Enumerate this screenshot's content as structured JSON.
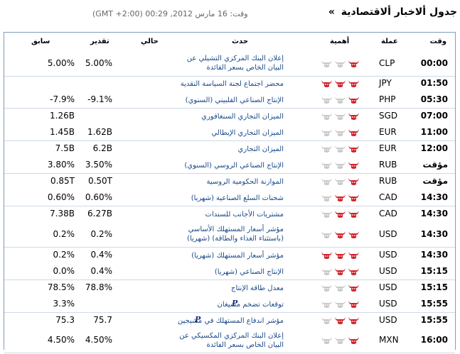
{
  "header": {
    "title": "جدول ألاخبار ألاقتصادية",
    "raquo": "»",
    "subtitle": "وقت: 16 مارس 2012, 00:29 (GMT +2:00)"
  },
  "columns": {
    "time": "وقت",
    "currency": "عملة",
    "importance": "أهمية",
    "event": "حدث",
    "actual": "حالي",
    "forecast": "تقدير",
    "previous": "سابق"
  },
  "colors": {
    "bull_active": "#d0202a",
    "bull_inactive": "#c8c8c8",
    "border": "#7f9db9",
    "event_link": "#1a4a8a"
  },
  "rows": [
    {
      "time": "00:00",
      "currency": "CLP",
      "importance": 1,
      "event": "إعلان البنك المركزي التشيلي عن البيان الخاص بسعر الفائدة",
      "actual": "",
      "forecast": "5.00%",
      "previous": "5.00%",
      "pin": false
    },
    {
      "time": "01:50",
      "currency": "JPY",
      "importance": 3,
      "event": "محضر اجتماع لجنة السياسة النقدية",
      "actual": "",
      "forecast": "",
      "previous": "",
      "pin": false
    },
    {
      "time": "05:30",
      "currency": "PHP",
      "importance": 1,
      "event": "الإنتاج الصناعي الفلبيني (السنوي)",
      "actual": "",
      "forecast": "-9.1%",
      "previous": "-7.9%",
      "pin": false
    },
    {
      "time": "07:00",
      "currency": "SGD",
      "importance": 1,
      "event": "الميزان التجاري السنغافوري",
      "actual": "",
      "forecast": "",
      "previous": "1.26B",
      "pin": false
    },
    {
      "time": "11:00",
      "currency": "EUR",
      "importance": 1,
      "event": "الميزان التجاري الإيطالي",
      "actual": "",
      "forecast": "1.62B",
      "previous": "1.45B",
      "pin": false
    },
    {
      "time": "12:00",
      "currency": "EUR",
      "importance": 1,
      "event": "الميزان التجاري",
      "actual": "",
      "forecast": "6.2B",
      "previous": "7.5B",
      "pin": false
    },
    {
      "time": "مؤقت",
      "currency": "RUB",
      "importance": 1,
      "event": "الإنتاج الصناعي الروسي (السنوي)",
      "actual": "",
      "forecast": "3.50%",
      "previous": "3.80%",
      "pin": false
    },
    {
      "time": "مؤقت",
      "currency": "RUB",
      "importance": 1,
      "event": "الموازنة الحكومية الروسية",
      "actual": "",
      "forecast": "0.50T",
      "previous": "0.85T",
      "pin": false
    },
    {
      "time": "14:30",
      "currency": "CAD",
      "importance": 2,
      "event": "شحنات السلع الصناعية (شهريا)",
      "actual": "",
      "forecast": "0.60%",
      "previous": "0.60%",
      "pin": false
    },
    {
      "time": "14:30",
      "currency": "CAD",
      "importance": 2,
      "event": "مشتريات الأجانب للسندات",
      "actual": "",
      "forecast": "6.27B",
      "previous": "7.38B",
      "pin": false
    },
    {
      "time": "14:30",
      "currency": "USD",
      "importance": 2,
      "event": "مؤشر أسعار المستهلك الأساسي (باستثناء الغذاء والطاقة) (شهريا)",
      "actual": "",
      "forecast": "0.2%",
      "previous": "0.2%",
      "pin": false
    },
    {
      "time": "14:30",
      "currency": "USD",
      "importance": 3,
      "event": "مؤشر أسعار المستهلك (شهريا)",
      "actual": "",
      "forecast": "0.4%",
      "previous": "0.2%",
      "pin": false
    },
    {
      "time": "15:15",
      "currency": "USD",
      "importance": 2,
      "event": "الإنتاج الصناعي (شهريا)",
      "actual": "",
      "forecast": "0.4%",
      "previous": "0.0%",
      "pin": false
    },
    {
      "time": "15:15",
      "currency": "USD",
      "importance": 1,
      "event": "معدل طاقة الإنتاج",
      "actual": "",
      "forecast": "78.8%",
      "previous": "78.5%",
      "pin": false
    },
    {
      "time": "15:55",
      "currency": "USD",
      "importance": 1,
      "event": "توقعات تضخم مشيغان",
      "actual": "",
      "forecast": "",
      "previous": "3.3%",
      "pin": true
    },
    {
      "time": "15:55",
      "currency": "USD",
      "importance": 2,
      "event": "مؤشر اندفاع المستهلك في مشيجين",
      "actual": "",
      "forecast": "75.7",
      "previous": "75.3",
      "pin": true
    },
    {
      "time": "16:00",
      "currency": "MXN",
      "importance": 1,
      "event": "إعلان البنك المركزي المكسيكي عن البيان الخاص بسعر الفائدة",
      "actual": "",
      "forecast": "4.50%",
      "previous": "4.50%",
      "pin": false
    }
  ]
}
